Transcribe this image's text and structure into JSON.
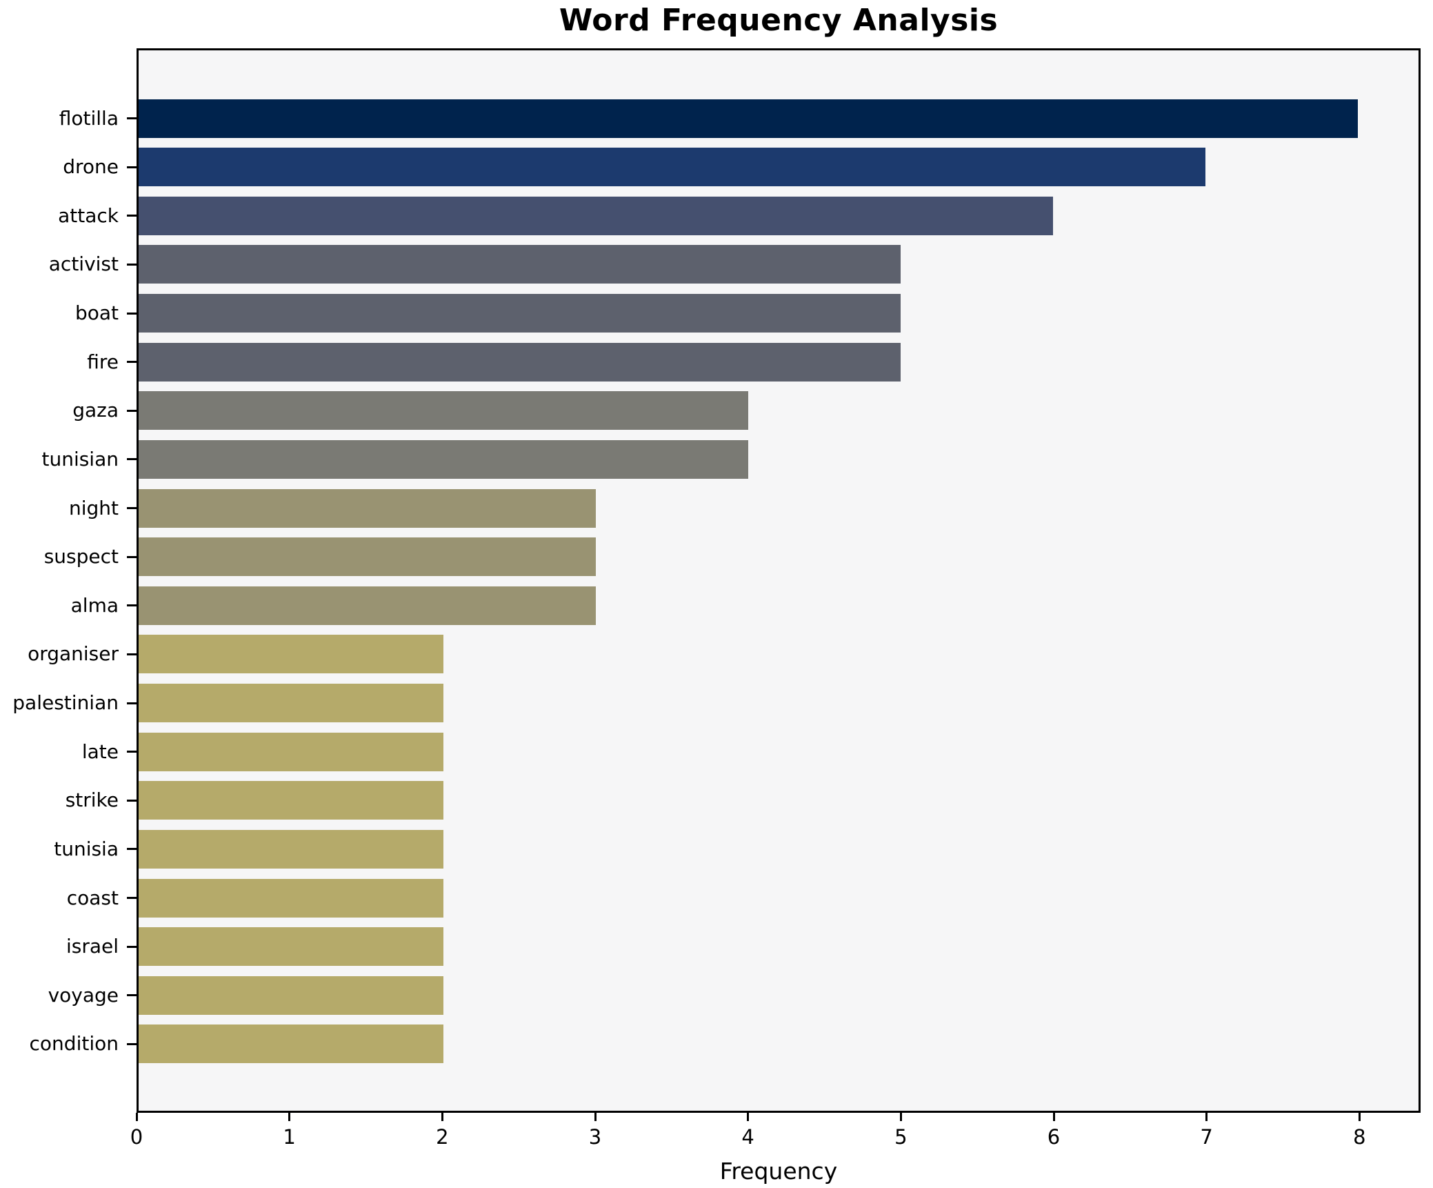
{
  "figure": {
    "title": "Word Frequency Analysis",
    "background_color": "#ffffff",
    "plot_background_color": "#f6f6f7",
    "spine_color": "#000000"
  },
  "chart_data": {
    "type": "bar",
    "orientation": "horizontal",
    "title": "Word Frequency Analysis",
    "xlabel": "Frequency",
    "ylabel": "",
    "grid": false,
    "legend_position": "none",
    "xlim": [
      0,
      8.4
    ],
    "x_ticks": [
      0,
      1,
      2,
      3,
      4,
      5,
      6,
      7,
      8
    ],
    "categories": [
      "flotilla",
      "drone",
      "attack",
      "activist",
      "boat",
      "fire",
      "gaza",
      "tunisian",
      "night",
      "suspect",
      "alma",
      "organiser",
      "palestinian",
      "late",
      "strike",
      "tunisia",
      "coast",
      "israel",
      "voyage",
      "condition"
    ],
    "values": [
      8,
      7,
      6,
      5,
      5,
      5,
      4,
      4,
      3,
      3,
      3,
      2,
      2,
      2,
      2,
      2,
      2,
      2,
      2,
      2
    ],
    "bar_colors": [
      "#00234d",
      "#1c3a6e",
      "#45506f",
      "#5d616d",
      "#5d616d",
      "#5d616d",
      "#7a7a74",
      "#7a7a74",
      "#999372",
      "#999372",
      "#999372",
      "#b5aa6a",
      "#b5aa6a",
      "#b5aa6a",
      "#b5aa6a",
      "#b5aa6a",
      "#b5aa6a",
      "#b5aa6a",
      "#b5aa6a",
      "#b5aa6a"
    ]
  }
}
